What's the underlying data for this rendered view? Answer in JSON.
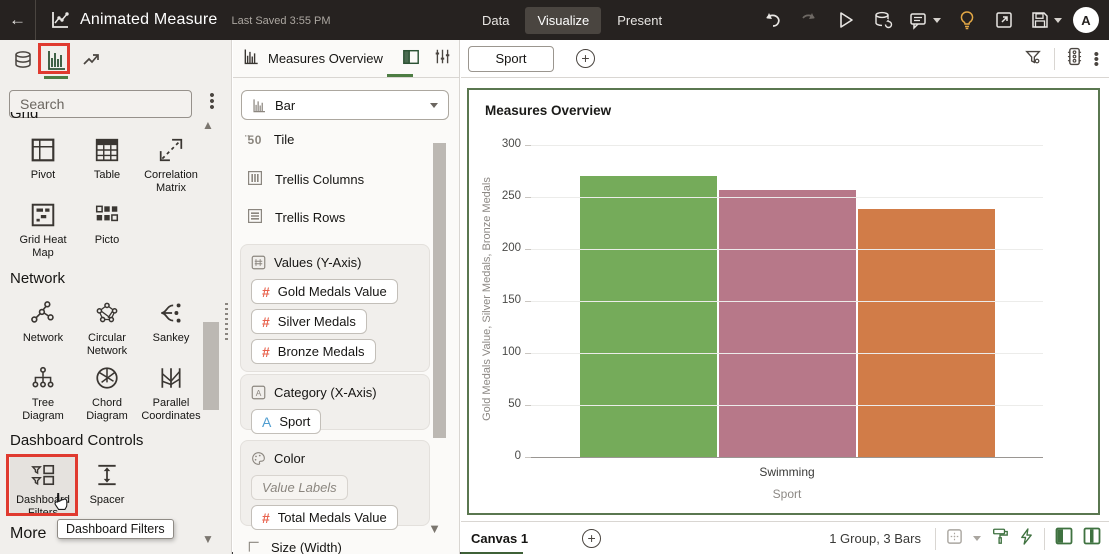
{
  "topbar": {
    "title": "Animated Measure",
    "last_saved": "Last Saved 3:55 PM",
    "tabs": {
      "data": "Data",
      "visualize": "Visualize",
      "present": "Present"
    },
    "avatar_initial": "A"
  },
  "left_panel": {
    "search_placeholder": "Search",
    "section_grid": "Grid",
    "grid_items": [
      "Pivot",
      "Table",
      "Correlation Matrix",
      "Grid Heat Map",
      "Picto"
    ],
    "section_network": "Network",
    "network_items": [
      "Network",
      "Circular Network",
      "Sankey",
      "Tree Diagram",
      "Chord Diagram",
      "Parallel Coordinates"
    ],
    "section_dashboard": "Dashboard Controls",
    "dashboard_items": [
      "Dashboard Filters",
      "Spacer"
    ],
    "section_more": "More",
    "tooltip": "Dashboard Filters"
  },
  "grammar_panel": {
    "title": "Measures Overview",
    "viz_type_selected": "Bar",
    "tile_badge": "50",
    "list_items": [
      "Tile",
      "Trellis Columns",
      "Trellis Rows"
    ],
    "values_section": {
      "label": "Values (Y-Axis)",
      "pills": [
        "Gold Medals Value",
        "Silver Medals",
        "Bronze Medals"
      ]
    },
    "category_section": {
      "label": "Category (X-Axis)",
      "pills": [
        "Sport"
      ]
    },
    "color_section": {
      "label": "Color",
      "placeholder": "Value Labels",
      "pills": [
        "Total Medals Value"
      ]
    },
    "size_section_label": "Size (Width)"
  },
  "canvas": {
    "filter_chip": "Sport",
    "tab_label": "Canvas 1",
    "status_text": "1 Group, 3 Bars"
  },
  "chart_data": {
    "type": "bar",
    "title": "Measures Overview",
    "categories": [
      "Swimming"
    ],
    "series": [
      {
        "name": "Gold Medals Value",
        "values": [
          270
        ],
        "color": "#75ab5a"
      },
      {
        "name": "Silver Medals",
        "values": [
          257
        ],
        "color": "#b77889"
      },
      {
        "name": "Bronze Medals",
        "values": [
          238
        ],
        "color": "#d17c48"
      }
    ],
    "xlabel": "Sport",
    "ylabel": "Gold Medals Value, Silver Medals, Bronze Medals",
    "ylim": [
      0,
      300
    ],
    "yticks": [
      0,
      50,
      100,
      150,
      200,
      250,
      300
    ],
    "grid": true,
    "legend": "none"
  },
  "colors": {
    "accent_green_underline": "#4d7d43",
    "annotation_red": "#e03a2f",
    "chart_border_green": "#5a7750",
    "topbar_bg": "#262220"
  }
}
